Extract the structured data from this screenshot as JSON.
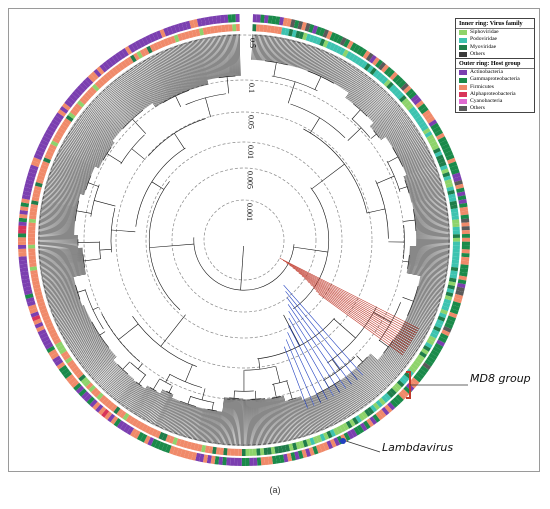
{
  "scale_labels": [
    "0.5",
    "0.1",
    "0.05",
    "0.01",
    "0.005",
    "0.001"
  ],
  "legend_inner": {
    "title": "Inner ring: Virus family",
    "items": [
      {
        "label": "Siphoviridae",
        "color": "#8ed36b"
      },
      {
        "label": "Podoviridae",
        "color": "#3dc3b0"
      },
      {
        "label": "Myoviridae",
        "color": "#1f7d4a"
      },
      {
        "label": "Others",
        "color": "#3a3a3a"
      }
    ]
  },
  "legend_outer": {
    "title": "Outer ring: Host group",
    "items": [
      {
        "label": "Actinobacteria",
        "color": "#7b3fb0"
      },
      {
        "label": "Gammaproteobacteria",
        "color": "#1a8a4a"
      },
      {
        "label": "Firmicutes",
        "color": "#f08a6a"
      },
      {
        "label": "Alphaproteobacteria",
        "color": "#d8355a"
      },
      {
        "label": "Cyanobacteria",
        "color": "#e06ad0"
      },
      {
        "label": "Others",
        "color": "#5a5a5a"
      }
    ]
  },
  "callouts": {
    "md8": "MD8 group",
    "lambda": "Lambdavirus"
  },
  "highlight_colors": {
    "md8": "#c0392b",
    "lambda": "#2040c0"
  },
  "caption": "(a)"
}
